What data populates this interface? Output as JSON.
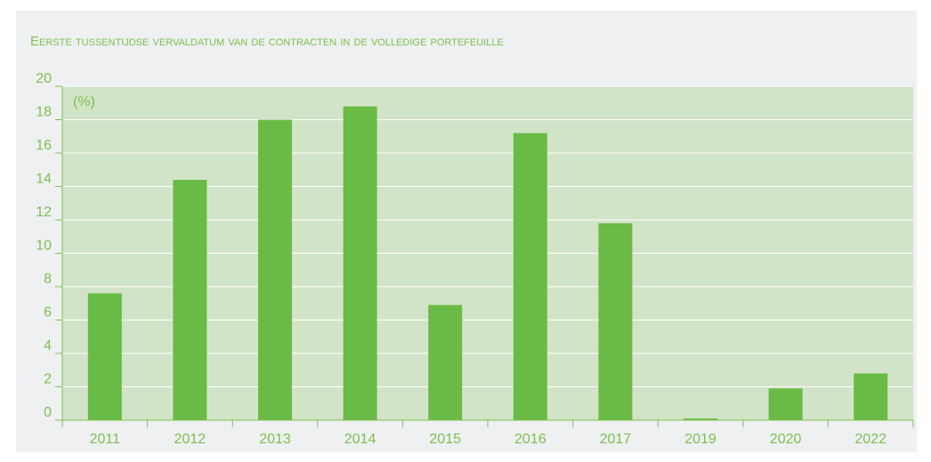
{
  "chart_data": {
    "type": "bar",
    "title": "Eerste tussentijdse vervaldatum van de contracten in de volledige portefeuille",
    "unit_label": "(%)",
    "categories": [
      "2011",
      "2012",
      "2013",
      "2014",
      "2015",
      "2016",
      "2017",
      "2019",
      "2020",
      "2022"
    ],
    "values": [
      7.6,
      14.4,
      18.0,
      18.8,
      6.9,
      17.2,
      11.8,
      0.1,
      1.9,
      2.8
    ],
    "color": "#6abb45",
    "ylim": [
      0,
      20
    ],
    "yticks": [
      0,
      2,
      4,
      6,
      8,
      10,
      12,
      14,
      16,
      18,
      20
    ],
    "grid": true
  }
}
